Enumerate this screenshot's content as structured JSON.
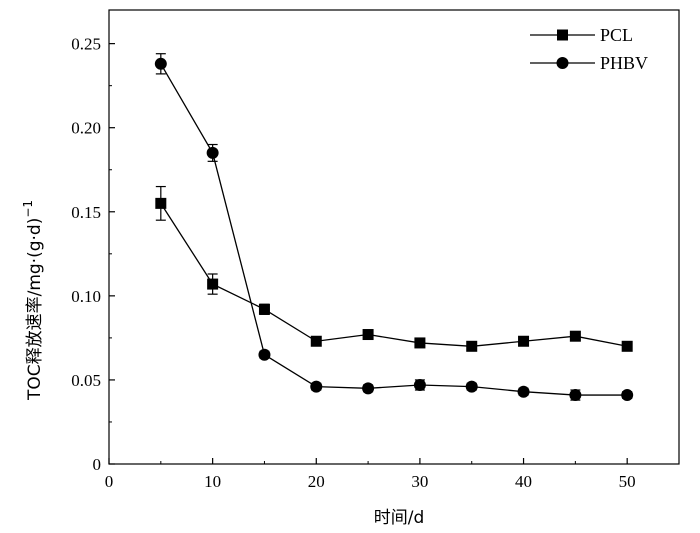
{
  "chart_data": {
    "type": "line",
    "xlabel": "时间/d",
    "ylabel_main": "TOC释放速率/mg·(g·d)",
    "ylabel_sup": "−1",
    "xlim": [
      0,
      55
    ],
    "ylim": [
      0,
      0.27
    ],
    "xticks": [
      0,
      10,
      20,
      30,
      40,
      50
    ],
    "xtick_labels": [
      "0",
      "10",
      "20",
      "30",
      "40",
      "50"
    ],
    "yticks": [
      0,
      0.05,
      0.1,
      0.15,
      0.2,
      0.25
    ],
    "ytick_labels": [
      "0",
      "0.05",
      "0.10",
      "0.15",
      "0.20",
      "0.25"
    ],
    "grid": false,
    "legend_position": "top-right",
    "series": [
      {
        "name": "PCL",
        "marker": "square",
        "x": [
          5,
          10,
          15,
          20,
          25,
          30,
          35,
          40,
          45,
          50
        ],
        "y": [
          0.155,
          0.107,
          0.092,
          0.073,
          0.077,
          0.072,
          0.07,
          0.073,
          0.076,
          0.07
        ],
        "error": [
          0.01,
          0.006,
          0.003,
          0.002,
          0.002,
          0.002,
          0.002,
          0.002,
          0.002,
          0.002
        ]
      },
      {
        "name": "PHBV",
        "marker": "circle",
        "x": [
          5,
          10,
          15,
          20,
          25,
          30,
          35,
          40,
          45,
          50
        ],
        "y": [
          0.238,
          0.185,
          0.065,
          0.046,
          0.045,
          0.047,
          0.046,
          0.043,
          0.041,
          0.041
        ],
        "error": [
          0.006,
          0.005,
          0.002,
          0.002,
          0.002,
          0.003,
          0.002,
          0.002,
          0.003,
          0.002
        ]
      }
    ]
  }
}
